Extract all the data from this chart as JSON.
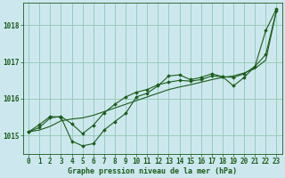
{
  "bg_color": "#cce8ee",
  "grid_color": "#99ccbb",
  "line_color": "#1a5c1a",
  "xlabel": "Graphe pression niveau de la mer (hPa)",
  "ylim": [
    1014.5,
    1018.6
  ],
  "xlim": [
    -0.5,
    23.5
  ],
  "yticks": [
    1015,
    1016,
    1017,
    1018
  ],
  "xticks": [
    0,
    1,
    2,
    3,
    4,
    5,
    6,
    7,
    8,
    9,
    10,
    11,
    12,
    13,
    14,
    15,
    16,
    17,
    18,
    19,
    20,
    21,
    22,
    23
  ],
  "series1": [
    1015.1,
    1015.15,
    1015.25,
    1015.4,
    1015.45,
    1015.48,
    1015.55,
    1015.65,
    1015.75,
    1015.85,
    1015.95,
    1016.05,
    1016.15,
    1016.25,
    1016.32,
    1016.38,
    1016.45,
    1016.52,
    1016.58,
    1016.62,
    1016.7,
    1016.82,
    1017.05,
    1018.4
  ],
  "series2": [
    1015.1,
    1015.3,
    1015.52,
    1015.5,
    1014.85,
    1014.72,
    1014.78,
    1015.15,
    1015.38,
    1015.6,
    1016.05,
    1016.15,
    1016.35,
    1016.62,
    1016.65,
    1016.52,
    1016.58,
    1016.68,
    1016.6,
    1016.35,
    1016.58,
    1016.88,
    1017.85,
    1018.45
  ],
  "series3": [
    1015.1,
    1015.22,
    1015.48,
    1015.52,
    1015.32,
    1015.05,
    1015.28,
    1015.62,
    1015.85,
    1016.05,
    1016.18,
    1016.25,
    1016.38,
    1016.45,
    1016.5,
    1016.48,
    1016.52,
    1016.62,
    1016.6,
    1016.58,
    1016.68,
    1016.88,
    1017.2,
    1018.4
  ],
  "tick_fontsize": 5.5,
  "xlabel_fontsize": 6.0,
  "lw": 0.8,
  "marker_size": 1.8
}
